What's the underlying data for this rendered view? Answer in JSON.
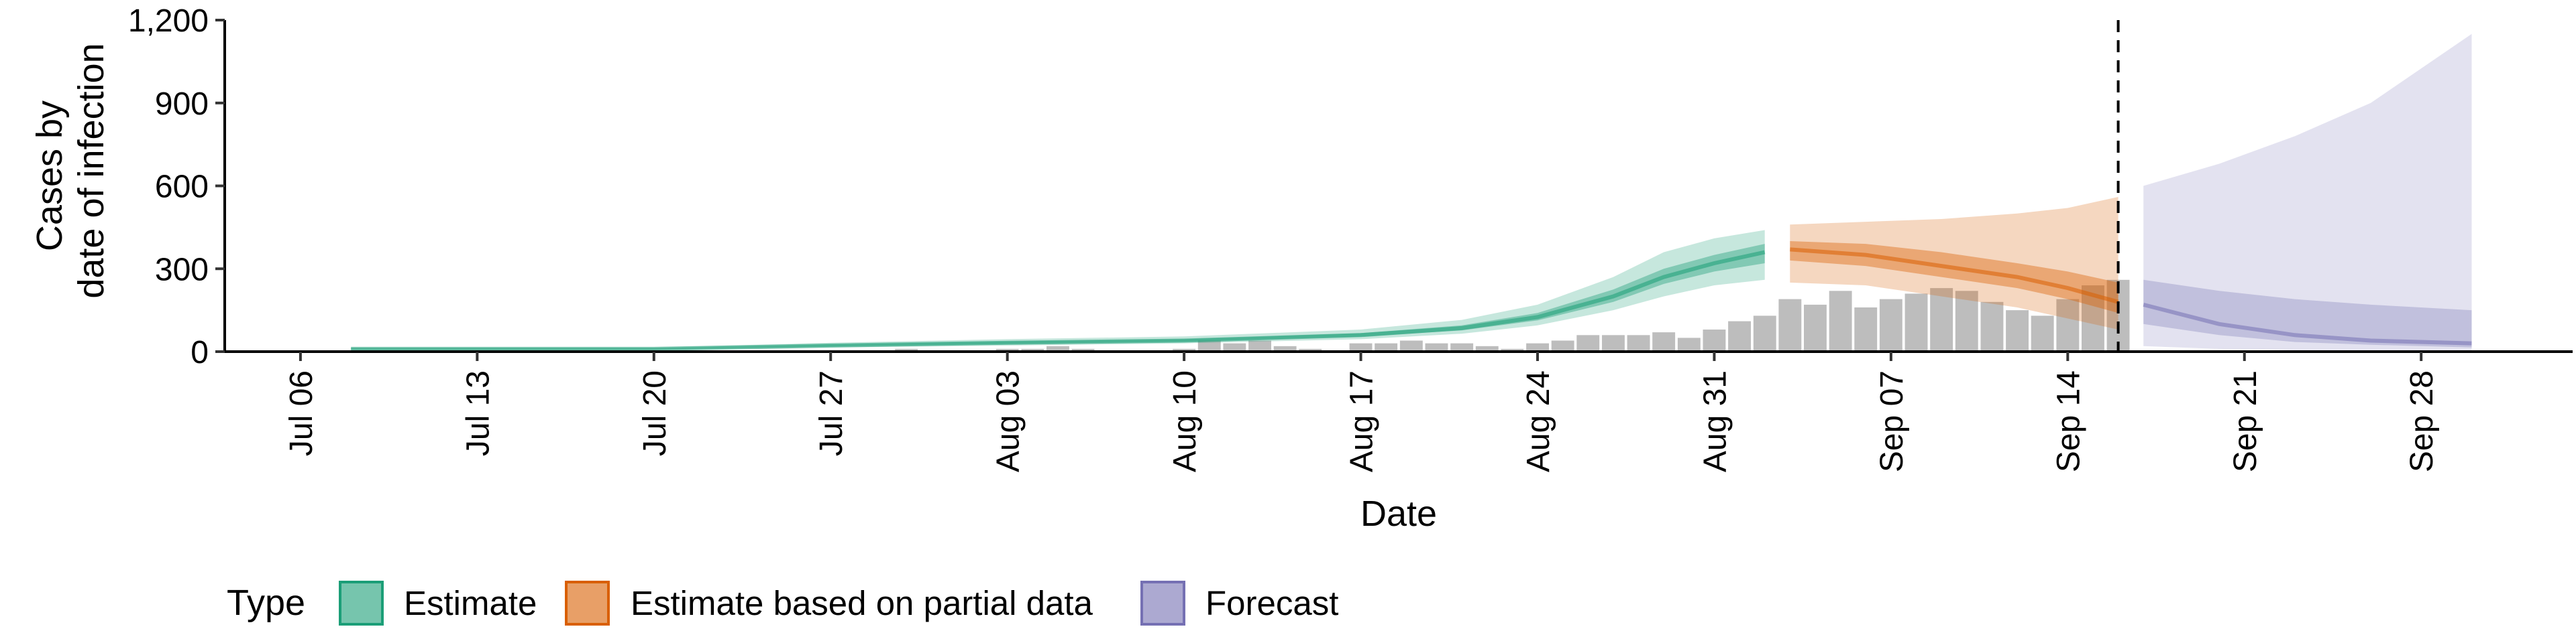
{
  "chart_data": {
    "type": "bar",
    "xlabel": "Date",
    "ylabel_lines": [
      "Cases by",
      "date of infection"
    ],
    "ylim": [
      0,
      1200
    ],
    "xlim": [
      "2020-07-03",
      "2020-10-04"
    ],
    "y_ticks": [
      0,
      300,
      600,
      900,
      1200
    ],
    "y_tick_labels": [
      "0",
      "300",
      "600",
      "900",
      "1,200"
    ],
    "x_ticks": [
      "2020-07-06",
      "2020-07-13",
      "2020-07-20",
      "2020-07-27",
      "2020-08-03",
      "2020-08-10",
      "2020-08-17",
      "2020-08-24",
      "2020-08-31",
      "2020-09-07",
      "2020-09-14",
      "2020-09-21",
      "2020-09-28"
    ],
    "x_tick_labels": [
      "Jul 06",
      "Jul 13",
      "Jul 20",
      "Jul 27",
      "Aug 03",
      "Aug 10",
      "Aug 17",
      "Aug 24",
      "Aug 31",
      "Sep 07",
      "Sep 14",
      "Sep 21",
      "Sep 28"
    ],
    "forecast_date": "2020-09-16",
    "reported_cases": {
      "dates": [
        "2020-07-30",
        "2020-07-31",
        "2020-08-01",
        "2020-08-02",
        "2020-08-03",
        "2020-08-04",
        "2020-08-05",
        "2020-08-06",
        "2020-08-07",
        "2020-08-08",
        "2020-08-09",
        "2020-08-10",
        "2020-08-11",
        "2020-08-12",
        "2020-08-13",
        "2020-08-14",
        "2020-08-15",
        "2020-08-16",
        "2020-08-17",
        "2020-08-18",
        "2020-08-19",
        "2020-08-20",
        "2020-08-21",
        "2020-08-22",
        "2020-08-23",
        "2020-08-24",
        "2020-08-25",
        "2020-08-26",
        "2020-08-27",
        "2020-08-28",
        "2020-08-29",
        "2020-08-30",
        "2020-08-31",
        "2020-09-01",
        "2020-09-02",
        "2020-09-03",
        "2020-09-04",
        "2020-09-05",
        "2020-09-06",
        "2020-09-07",
        "2020-09-08",
        "2020-09-09",
        "2020-09-10",
        "2020-09-11",
        "2020-09-12",
        "2020-09-13",
        "2020-09-14",
        "2020-09-15",
        "2020-09-16"
      ],
      "values": [
        10,
        0,
        0,
        0,
        10,
        10,
        20,
        10,
        0,
        0,
        0,
        10,
        40,
        30,
        40,
        20,
        10,
        0,
        30,
        30,
        40,
        30,
        30,
        20,
        10,
        30,
        40,
        60,
        60,
        60,
        70,
        50,
        80,
        110,
        130,
        190,
        170,
        220,
        160,
        190,
        210,
        230,
        220,
        180,
        150,
        130,
        190,
        240,
        260
      ]
    },
    "series": [
      {
        "name": "Estimate",
        "color": "#1b9e77",
        "dates": [
          "2020-07-08",
          "2020-07-13",
          "2020-07-20",
          "2020-07-27",
          "2020-08-03",
          "2020-08-10",
          "2020-08-17",
          "2020-08-21",
          "2020-08-24",
          "2020-08-27",
          "2020-08-29",
          "2020-08-31",
          "2020-09-02"
        ],
        "median": [
          10,
          10,
          10,
          22,
          32,
          40,
          60,
          85,
          125,
          200,
          270,
          320,
          360
        ],
        "lower_outer": [
          6,
          6,
          6,
          15,
          22,
          30,
          45,
          65,
          95,
          150,
          200,
          240,
          260
        ],
        "upper_outer": [
          15,
          15,
          15,
          32,
          45,
          55,
          80,
          115,
          170,
          270,
          360,
          410,
          440
        ],
        "lower_inner": [
          8,
          8,
          8,
          19,
          28,
          36,
          54,
          77,
          113,
          180,
          245,
          290,
          320
        ],
        "upper_inner": [
          12,
          12,
          12,
          26,
          37,
          45,
          67,
          95,
          140,
          225,
          300,
          350,
          390
        ]
      },
      {
        "name": "Estimate based on partial data",
        "color": "#d95f02",
        "dates": [
          "2020-09-03",
          "2020-09-06",
          "2020-09-09",
          "2020-09-12",
          "2020-09-14",
          "2020-09-16"
        ],
        "median": [
          370,
          350,
          310,
          270,
          230,
          180
        ],
        "lower_outer": [
          250,
          240,
          200,
          160,
          120,
          80
        ],
        "upper_outer": [
          460,
          470,
          480,
          500,
          520,
          560
        ],
        "lower_inner": [
          330,
          310,
          270,
          230,
          190,
          140
        ],
        "upper_inner": [
          400,
          390,
          360,
          320,
          290,
          250
        ]
      },
      {
        "name": "Forecast",
        "color": "#7570b3",
        "dates": [
          "2020-09-17",
          "2020-09-20",
          "2020-09-23",
          "2020-09-26",
          "2020-09-30"
        ],
        "median": [
          170,
          100,
          60,
          40,
          30
        ],
        "lower_outer": [
          20,
          10,
          5,
          5,
          5
        ],
        "upper_outer": [
          600,
          680,
          780,
          900,
          1150
        ],
        "lower_inner": [
          100,
          60,
          35,
          25,
          15
        ],
        "upper_inner": [
          260,
          220,
          190,
          170,
          150
        ]
      }
    ],
    "legend": {
      "title": "Type",
      "placement": "bottom",
      "entries": [
        "Estimate",
        "Estimate based on partial data",
        "Forecast"
      ]
    },
    "grid": false
  }
}
